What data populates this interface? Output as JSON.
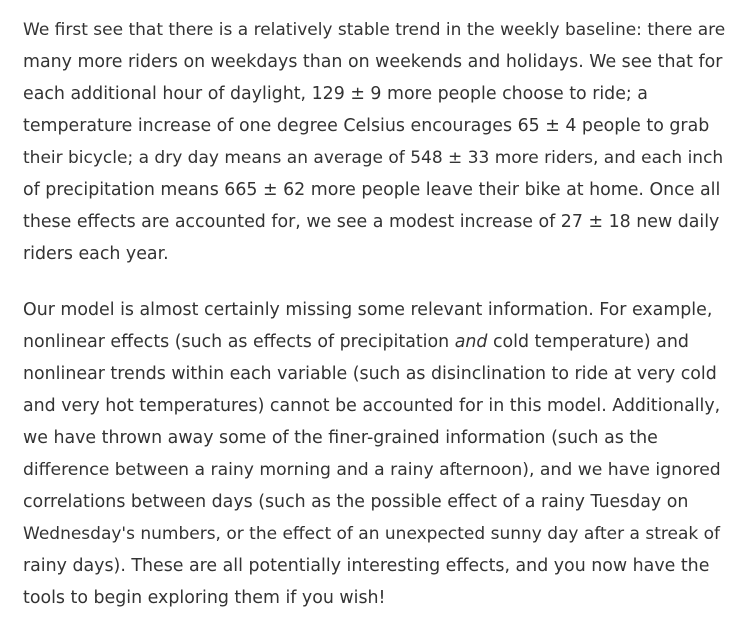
{
  "article": {
    "paragraph_1": [
      "We first see that there is a relatively stable trend in the weekly baseline: there are",
      "many more riders on weekdays than on weekends and holidays. We see that for",
      "each additional hour of daylight, 129 ± 9 more people choose to ride; a",
      "temperature increase of one degree Celsius encourages 65 ± 4 people to grab",
      "their bicycle; a dry day means an average of 548 ± 33 more riders, and each inch",
      "of precipitation means 665 ± 62 more people leave their bike at home. Once all",
      "these effects are accounted for, we see a modest increase of 27 ± 18 new daily",
      "riders each year."
    ],
    "paragraph_2": {
      "line_1": "Our model is almost certainly missing some relevant information. For example,",
      "line_2_before": "nonlinear effects (such as effects of precipitation ",
      "line_2_emphasis": "and",
      "line_2_after": " cold temperature) and",
      "lines_rest": [
        "nonlinear trends within each variable (such as disinclination to ride at very cold",
        "and very hot temperatures) cannot be accounted for in this model. Additionally,",
        "we have thrown away some of the finer-grained information (such as the",
        "difference between a rainy morning and a rainy afternoon), and we have ignored",
        "correlations between days (such as the possible effect of a rainy Tuesday on",
        "Wednesday's numbers, or the effect of an unexpected sunny day after a streak of",
        "rainy days). These are all potentially interesting effects, and you now have the",
        "tools to begin exploring them if you wish!"
      ]
    }
  }
}
